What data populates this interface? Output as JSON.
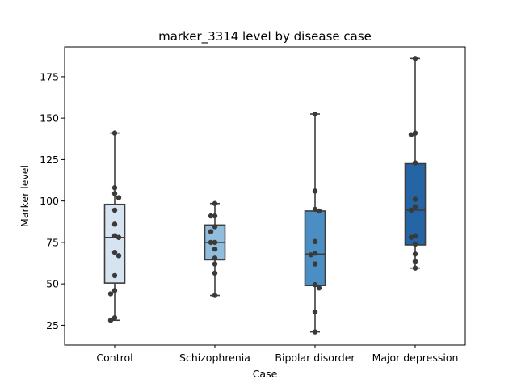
{
  "chart_data": {
    "type": "box",
    "title": "marker_3314 level by disease case",
    "xlabel": "Case",
    "ylabel": "Marker level",
    "ylim": [
      13,
      193
    ],
    "yticks": [
      25,
      50,
      75,
      100,
      125,
      150,
      175
    ],
    "categories": [
      "Control",
      "Schizophrenia",
      "Bipolar disorder",
      "Major depression"
    ],
    "box_colors": [
      "#d6e4f2",
      "#8fbddb",
      "#4a8ec4",
      "#2565a5"
    ],
    "boxes": [
      {
        "category": "Control",
        "min": 28,
        "q1": 50.5,
        "median": 78,
        "q3": 98,
        "max": 141
      },
      {
        "category": "Schizophrenia",
        "min": 43,
        "q1": 64.5,
        "median": 75,
        "q3": 85.5,
        "max": 98.5
      },
      {
        "category": "Bipolar disorder",
        "min": 21,
        "q1": 49,
        "median": 68,
        "q3": 94,
        "max": 152.5
      },
      {
        "category": "Major depression",
        "min": 59.5,
        "q1": 73.5,
        "median": 94.5,
        "q3": 122.5,
        "max": 186
      }
    ],
    "points": [
      [
        141,
        108,
        104.5,
        102,
        94.5,
        86,
        79,
        78,
        69,
        67,
        55,
        46,
        44,
        29.5,
        28
      ],
      [
        98.5,
        91,
        91,
        84.5,
        81.5,
        75,
        75,
        71,
        65.5,
        62,
        56.5,
        43
      ],
      [
        152.5,
        106,
        95,
        94,
        75.5,
        68.5,
        67.5,
        62,
        49.5,
        47.5,
        33,
        21
      ],
      [
        186,
        141,
        140,
        123,
        101,
        96.5,
        94.5,
        79,
        78,
        74,
        68,
        63.5,
        59.5
      ]
    ]
  }
}
